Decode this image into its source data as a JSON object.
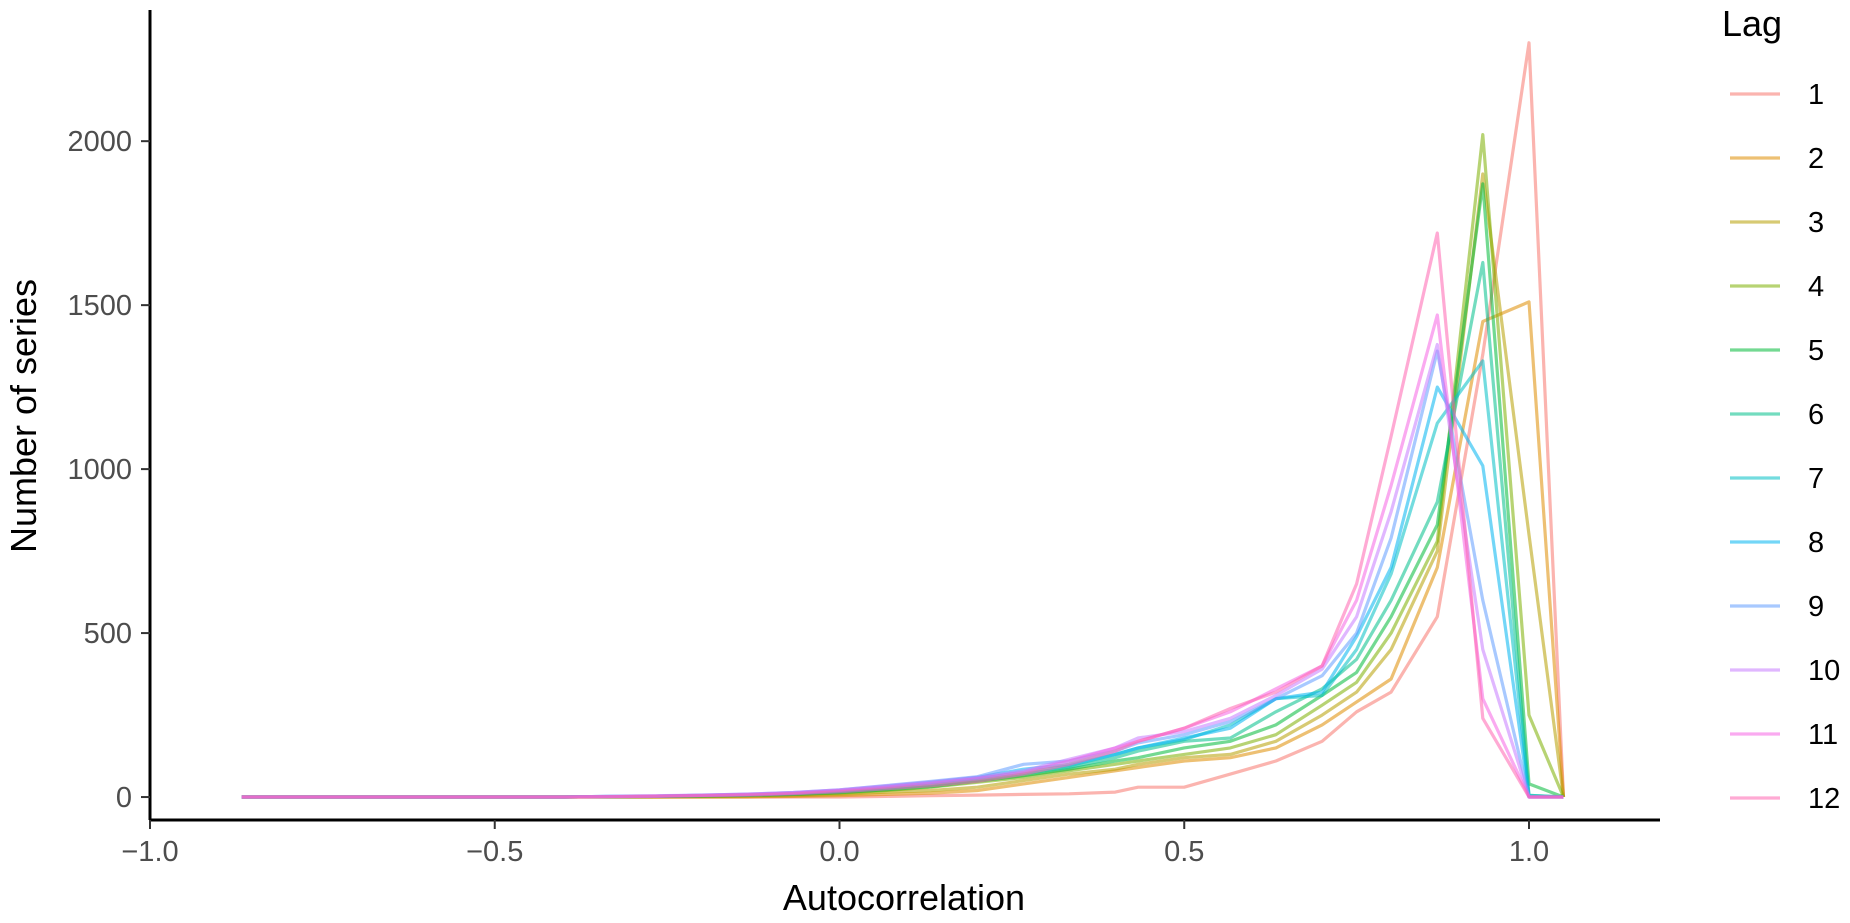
{
  "chart_data": {
    "type": "line",
    "title": "",
    "xlabel": "Autocorrelation",
    "ylabel": "Number of series",
    "xlim": [
      -1.0,
      1.19
    ],
    "ylim": [
      -70,
      2400
    ],
    "xticks": [
      -1.0,
      -0.5,
      0.0,
      0.5,
      1.0
    ],
    "xtick_labels": [
      "−1.0",
      "−0.5",
      "0.0",
      "0.5",
      "1.0"
    ],
    "yticks": [
      0,
      500,
      1000,
      1500,
      2000
    ],
    "ytick_labels": [
      "0",
      "500",
      "1000",
      "1500",
      "2000"
    ],
    "grid": false,
    "legend": {
      "title": "Lag",
      "placement": "right"
    },
    "x": [
      -0.867,
      -0.8,
      -0.733,
      -0.667,
      -0.6,
      -0.533,
      -0.467,
      -0.4,
      -0.333,
      -0.267,
      -0.2,
      -0.133,
      -0.067,
      0.0,
      0.067,
      0.133,
      0.2,
      0.267,
      0.333,
      0.4,
      0.433,
      0.5,
      0.567,
      0.633,
      0.7,
      0.75,
      0.8,
      0.867,
      0.933,
      1.0,
      1.05
    ],
    "series": [
      {
        "name": "1",
        "color": "#F8766D",
        "values": [
          0,
          0,
          0,
          0,
          0,
          0,
          0,
          0,
          0,
          0,
          0,
          0,
          0,
          0,
          2,
          4,
          6,
          8,
          10,
          15,
          30,
          30,
          70,
          110,
          170,
          260,
          320,
          550,
          1350,
          2300,
          0
        ]
      },
      {
        "name": "2",
        "color": "#DE8C00",
        "values": [
          0,
          0,
          0,
          0,
          0,
          0,
          0,
          0,
          0,
          0,
          0,
          0,
          2,
          4,
          8,
          12,
          20,
          40,
          60,
          80,
          90,
          110,
          120,
          150,
          220,
          290,
          360,
          700,
          1450,
          1510,
          0
        ]
      },
      {
        "name": "3",
        "color": "#B79F00",
        "values": [
          0,
          0,
          0,
          0,
          0,
          0,
          0,
          0,
          0,
          0,
          1,
          2,
          4,
          8,
          15,
          20,
          30,
          50,
          70,
          85,
          100,
          120,
          130,
          170,
          250,
          320,
          450,
          750,
          1900,
          800,
          0
        ]
      },
      {
        "name": "4",
        "color": "#7CAE00",
        "values": [
          0,
          0,
          0,
          0,
          0,
          0,
          0,
          0,
          1,
          2,
          3,
          5,
          8,
          12,
          20,
          30,
          45,
          60,
          80,
          100,
          110,
          130,
          150,
          190,
          280,
          350,
          500,
          780,
          2020,
          250,
          0
        ]
      },
      {
        "name": "5",
        "color": "#00BA38",
        "values": [
          0,
          0,
          0,
          0,
          0,
          0,
          0,
          0,
          1,
          2,
          3,
          5,
          8,
          14,
          22,
          32,
          48,
          65,
          85,
          110,
          120,
          150,
          170,
          220,
          310,
          380,
          550,
          830,
          1870,
          40,
          0
        ]
      },
      {
        "name": "6",
        "color": "#00C08B",
        "values": [
          0,
          0,
          0,
          0,
          0,
          0,
          0,
          0,
          1,
          2,
          4,
          6,
          10,
          16,
          25,
          36,
          52,
          70,
          90,
          120,
          140,
          170,
          180,
          260,
          330,
          420,
          600,
          900,
          1630,
          5,
          0
        ]
      },
      {
        "name": "7",
        "color": "#00BFC4",
        "values": [
          0,
          0,
          0,
          0,
          0,
          0,
          0,
          0,
          1,
          3,
          5,
          7,
          11,
          18,
          28,
          40,
          56,
          75,
          95,
          130,
          150,
          175,
          220,
          300,
          310,
          450,
          680,
          1140,
          1330,
          5,
          0
        ]
      },
      {
        "name": "8",
        "color": "#00B4F0",
        "values": [
          0,
          0,
          0,
          0,
          0,
          0,
          0,
          0,
          2,
          3,
          5,
          8,
          12,
          20,
          32,
          45,
          60,
          85,
          100,
          130,
          150,
          180,
          210,
          300,
          320,
          490,
          700,
          1250,
          1010,
          0,
          0
        ]
      },
      {
        "name": "9",
        "color": "#619CFF",
        "values": [
          0,
          0,
          0,
          0,
          0,
          0,
          0,
          0,
          2,
          3,
          6,
          9,
          14,
          22,
          35,
          48,
          62,
          100,
          110,
          140,
          165,
          190,
          230,
          300,
          370,
          500,
          790,
          1360,
          600,
          0,
          0
        ]
      },
      {
        "name": "10",
        "color": "#C77CFF",
        "values": [
          0,
          0,
          0,
          0,
          0,
          0,
          0,
          0,
          2,
          4,
          6,
          9,
          14,
          22,
          34,
          46,
          60,
          80,
          115,
          150,
          180,
          200,
          240,
          310,
          390,
          550,
          870,
          1380,
          450,
          0,
          0
        ]
      },
      {
        "name": "11",
        "color": "#F564E3",
        "values": [
          0,
          0,
          0,
          0,
          0,
          0,
          0,
          0,
          1,
          3,
          5,
          8,
          12,
          20,
          30,
          42,
          56,
          75,
          110,
          150,
          170,
          210,
          260,
          330,
          400,
          600,
          950,
          1470,
          300,
          0,
          0
        ]
      },
      {
        "name": "12",
        "color": "#FF64B0",
        "values": [
          0,
          0,
          0,
          0,
          0,
          0,
          0,
          0,
          1,
          2,
          4,
          6,
          10,
          16,
          25,
          35,
          48,
          70,
          100,
          140,
          170,
          210,
          270,
          320,
          400,
          650,
          1100,
          1720,
          240,
          0,
          0
        ]
      }
    ]
  }
}
